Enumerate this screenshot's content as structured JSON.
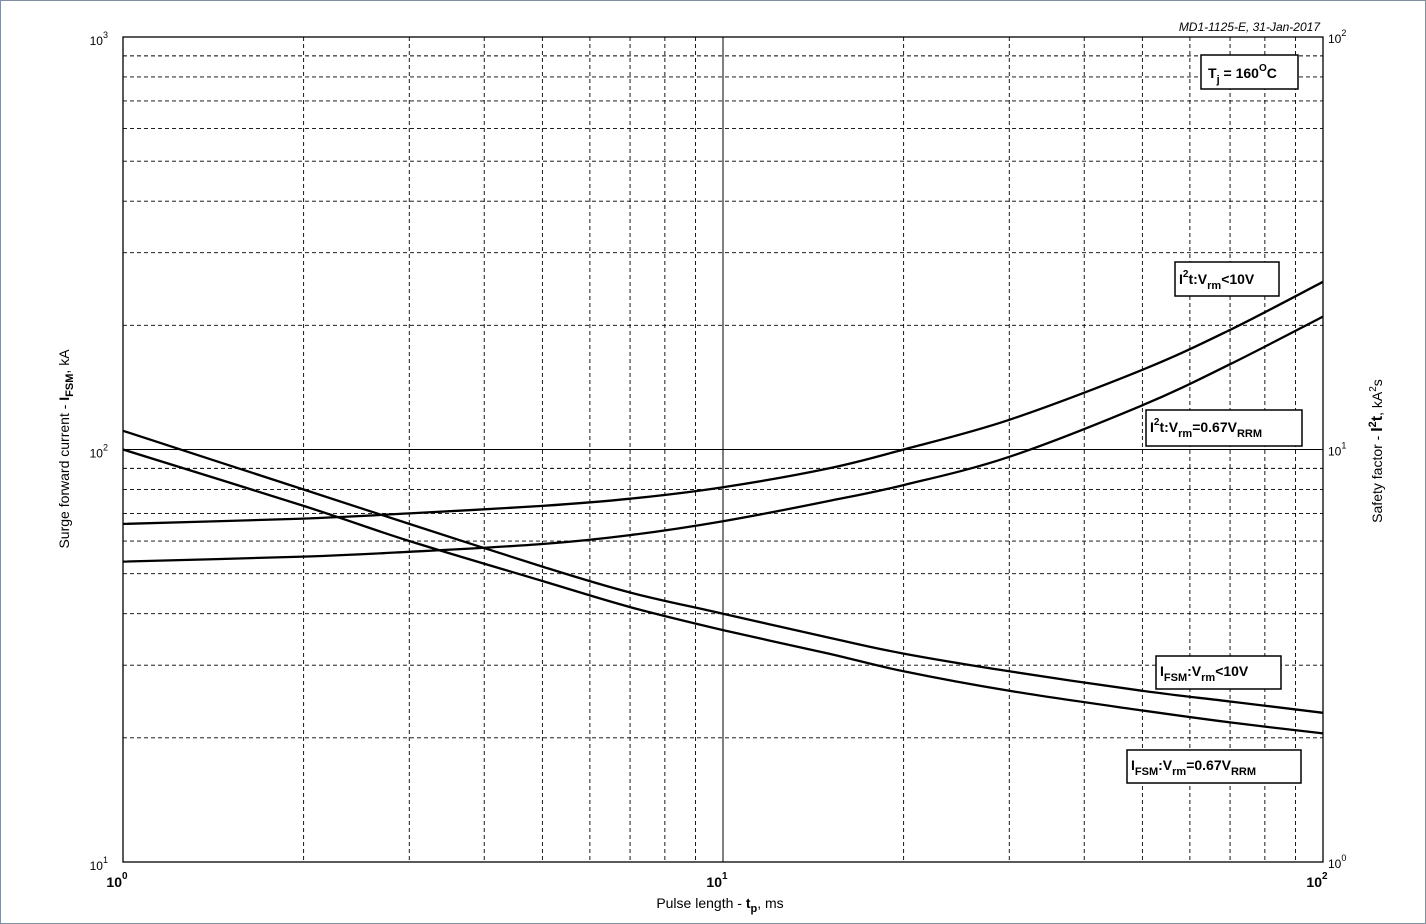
{
  "chart_data": {
    "type": "line",
    "watermark": "MD1-1125-E, 31-Jan-2017",
    "x_axis": {
      "label_main": "Pulse length - ",
      "label_symbol": "t",
      "label_sub": "p",
      "label_unit": ", ms",
      "scale": "log",
      "range": [
        1,
        100
      ],
      "ticks": [
        {
          "value": 1,
          "base": "10",
          "exp": "0"
        },
        {
          "value": 10,
          "base": "10",
          "exp": "1"
        },
        {
          "value": 100,
          "base": "10",
          "exp": "2"
        }
      ]
    },
    "y_axis_left": {
      "label_main": "Surge forward current - ",
      "label_symbol": "I",
      "label_sub": "FSM",
      "label_unit": ", kA",
      "scale": "log",
      "range": [
        10,
        1000
      ],
      "ticks": [
        {
          "value": 10,
          "base": "10",
          "exp": "1"
        },
        {
          "value": 100,
          "base": "10",
          "exp": "2"
        },
        {
          "value": 1000,
          "base": "10",
          "exp": "3"
        }
      ]
    },
    "y_axis_right": {
      "label_main": "Safety factor - ",
      "label_symbol": "I",
      "label_symbol_sup": "2",
      "label_symbol_tail": "t",
      "label_unit_pre": ", kA",
      "label_unit_sup": "2",
      "label_unit_post": "s",
      "scale": "log",
      "range": [
        1,
        100
      ],
      "ticks": [
        {
          "value": 1,
          "base": "10",
          "exp": "0"
        },
        {
          "value": 10,
          "base": "10",
          "exp": "1"
        },
        {
          "value": 100,
          "base": "10",
          "exp": "2"
        }
      ]
    },
    "grid": true,
    "annotation": {
      "main": "T",
      "sub": "j",
      "mid": " = 160",
      "sup": "O",
      "tail": "C"
    },
    "series": [
      {
        "name": "I2t:Vrm<10V",
        "axis": "right",
        "label": {
          "a": "I",
          "a_sup": "2",
          "b": "t:V",
          "b_sub": "rm",
          "c": "<10V",
          "c_sub": ""
        },
        "x": [
          1,
          2,
          3,
          5,
          7,
          10,
          15,
          20,
          30,
          50,
          70,
          100
        ],
        "y": [
          6.6,
          6.8,
          7.0,
          7.3,
          7.6,
          8.1,
          9.0,
          10.0,
          11.8,
          15.6,
          19.5,
          25.5
        ]
      },
      {
        "name": "I2t:Vrm=0.67VRRM",
        "axis": "right",
        "label": {
          "a": "I",
          "a_sup": "2",
          "b": "t:V",
          "b_sub": "rm",
          "c": "=0.67V",
          "c_sub": "RRM"
        },
        "x": [
          1,
          2,
          3,
          5,
          7,
          10,
          15,
          20,
          30,
          50,
          70,
          100
        ],
        "y": [
          5.35,
          5.5,
          5.65,
          5.9,
          6.2,
          6.7,
          7.5,
          8.2,
          9.6,
          12.8,
          16.1,
          21.0
        ]
      },
      {
        "name": "IFSM:Vrm<10V",
        "axis": "left",
        "label": {
          "a": "I",
          "a_sub": "FSM",
          "b": ":V",
          "b_sub": "rm",
          "c": "<10V",
          "c_sub": ""
        },
        "x": [
          1,
          2,
          3,
          5,
          7,
          10,
          15,
          20,
          30,
          50,
          70,
          100
        ],
        "y": [
          111,
          80,
          66,
          52,
          45,
          40,
          35,
          32,
          29,
          26,
          24.5,
          23
        ]
      },
      {
        "name": "IFSM:Vrm=0.67VRRM",
        "axis": "left",
        "label": {
          "a": "I",
          "a_sub": "FSM",
          "b": ":V",
          "b_sub": "rm",
          "c": "=0.67V",
          "c_sub": "RRM"
        },
        "x": [
          1,
          2,
          3,
          5,
          7,
          10,
          15,
          20,
          30,
          50,
          70,
          100
        ],
        "y": [
          100,
          73,
          60,
          48,
          41.5,
          36.5,
          32,
          29,
          26,
          23.3,
          21.8,
          20.5
        ]
      }
    ]
  }
}
